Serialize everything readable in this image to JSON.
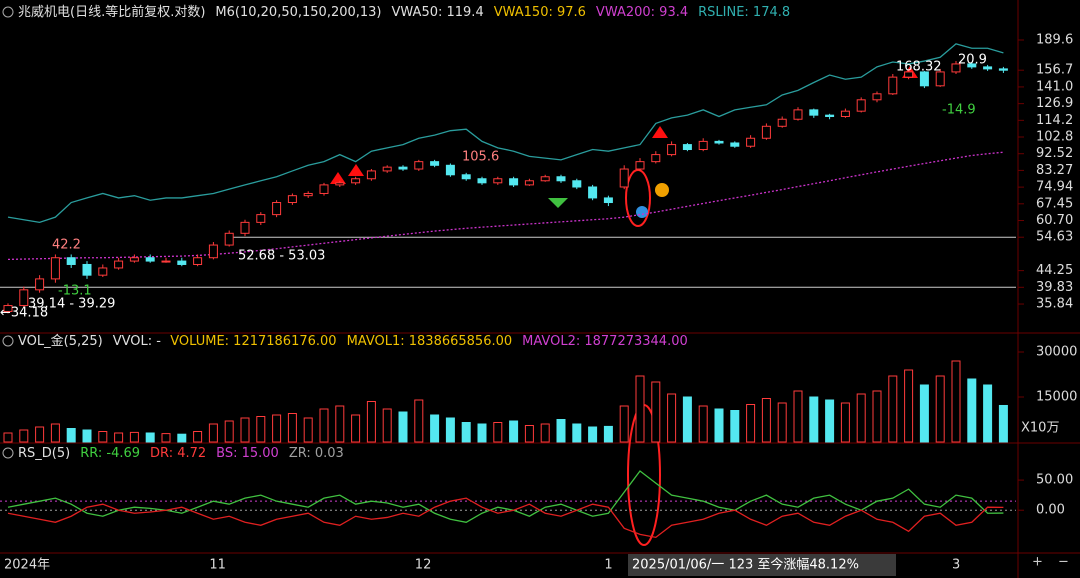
{
  "chart_data": [
    {
      "type": "candlestick",
      "title": "兆威机电(日线.等比前复权.对数)",
      "indicators": [
        {
          "text": "M6(10,20,50,150,200,13)",
          "color": "#e0e0e0"
        },
        {
          "text": "VWA50: 119.4",
          "color": "#e0e0e0"
        },
        {
          "text": "VWA150: 97.6",
          "color": "#f0c000"
        },
        {
          "text": "VWA200: 93.4",
          "color": "#d040d0"
        },
        {
          "text": "RSLINE: 174.8",
          "color": "#30b0b0"
        }
      ],
      "categories": [
        "2024年",
        null,
        null,
        null,
        null,
        null,
        null,
        null,
        null,
        null,
        null,
        null,
        null,
        "11",
        null,
        null,
        null,
        null,
        null,
        null,
        null,
        null,
        null,
        null,
        null,
        null,
        "12",
        null,
        null,
        null,
        null,
        null,
        null,
        null,
        null,
        null,
        null,
        null,
        "1",
        null,
        null,
        null,
        null,
        null,
        null,
        null,
        null,
        null,
        null,
        null,
        null,
        null,
        null,
        null,
        null,
        null,
        null,
        null,
        null,
        null,
        "3",
        null,
        null,
        null
      ],
      "open": [
        34.2,
        35.5,
        39.2,
        42,
        48,
        46,
        43,
        45,
        47,
        48,
        47,
        47,
        46,
        48,
        52,
        56,
        60,
        63,
        68,
        71,
        72,
        76,
        77,
        79,
        83,
        85,
        84,
        88,
        86,
        81,
        79,
        77,
        79,
        76,
        78,
        80,
        78,
        75,
        70,
        75,
        84,
        88,
        92,
        98,
        95,
        100,
        99,
        97,
        102,
        110,
        115,
        122,
        118,
        117,
        121,
        130,
        135,
        150,
        155,
        142,
        155,
        163,
        160,
        158
      ],
      "high": [
        36,
        40,
        43,
        49,
        49,
        47,
        46,
        48,
        49,
        49,
        48,
        48,
        49,
        53,
        57,
        61,
        64,
        69,
        72,
        73,
        77,
        78,
        80,
        84,
        86,
        86,
        89,
        89,
        87,
        82,
        80,
        80,
        80,
        79,
        81,
        81,
        79,
        76,
        71,
        86,
        90,
        94,
        100,
        99,
        102,
        101,
        100,
        104,
        112,
        117,
        124,
        123,
        119,
        123,
        132,
        137,
        153,
        158,
        156,
        158,
        166,
        165,
        162,
        160
      ],
      "low": [
        33.8,
        35,
        38.5,
        41,
        45,
        42,
        42.5,
        44.5,
        46.5,
        46.5,
        46.5,
        45.5,
        45.5,
        47.5,
        51.5,
        55,
        59,
        62,
        67,
        70,
        71,
        75,
        76,
        78,
        82,
        83,
        83,
        85,
        80,
        78,
        76,
        76,
        75,
        75.5,
        77.5,
        77,
        74,
        69,
        66.5,
        74,
        83,
        87,
        91,
        94,
        94,
        98,
        96,
        96,
        101,
        109,
        114,
        116,
        115,
        116,
        120,
        128,
        134,
        148,
        140,
        141,
        153,
        158,
        156,
        154
      ],
      "close": [
        35.5,
        39.2,
        42,
        48,
        46,
        43,
        45,
        47,
        48,
        47,
        47,
        46,
        48,
        52,
        56,
        60,
        63,
        68,
        71,
        72,
        76,
        77,
        79,
        83,
        85,
        84,
        88,
        86,
        81,
        79,
        77,
        79,
        76,
        78,
        80,
        78,
        75,
        70,
        68,
        84,
        88,
        92,
        98,
        95,
        100,
        99,
        97,
        102,
        110,
        115,
        122,
        118,
        117,
        121,
        130,
        135,
        150,
        155,
        142,
        155,
        163,
        160,
        158,
        156.7
      ],
      "up_color": "#ff3b3b",
      "down_color": "#54e8f0",
      "series": [
        {
          "color": "#2a9d9d",
          "values": [
            62,
            61,
            60,
            62,
            68,
            70,
            72,
            70,
            71,
            69,
            70,
            70,
            71,
            72,
            74,
            76,
            78,
            80,
            83,
            86,
            88,
            92,
            88,
            94,
            96,
            98,
            102,
            104,
            107,
            108,
            100,
            96,
            94,
            91,
            90,
            89,
            92,
            95,
            94,
            96,
            98,
            112,
            116,
            118,
            122,
            117,
            122,
            124,
            126,
            134,
            138,
            145,
            152,
            148,
            150,
            160,
            165,
            163,
            166,
            170,
            185,
            180,
            180,
            174.8
          ]
        },
        {
          "color": "#cc33cc",
          "dashed": true,
          "values": [
            47.5,
            47.6,
            47.7,
            47.8,
            47.9,
            48,
            48,
            48.1,
            48.2,
            48.3,
            48.4,
            48.5,
            48.7,
            49,
            49.4,
            49.8,
            50.3,
            50.8,
            51.4,
            52,
            52.6,
            53.2,
            53.8,
            54.4,
            55,
            55.6,
            56.2,
            56.8,
            57.3,
            57.8,
            58.2,
            58.6,
            59,
            59.4,
            59.8,
            60.2,
            60.6,
            61,
            61.4,
            62,
            63,
            64,
            65.2,
            66.4,
            67.6,
            68.8,
            70,
            71.2,
            72.5,
            73.8,
            75.2,
            76.6,
            78,
            79.5,
            81,
            82.5,
            84,
            85.5,
            87,
            88.5,
            90,
            91.5,
            92.5,
            93.4
          ]
        }
      ],
      "hlines": [
        54.63,
        39.83
      ],
      "log_scale": true,
      "ylim": [
        31.4,
        208.4
      ],
      "yticks": [
        189.6,
        156.7,
        {
          "value": 141.0,
          "label": "141.0"
        },
        126.9,
        114.2,
        102.8,
        92.52,
        83.27,
        74.94,
        67.45,
        {
          "value": 60.7,
          "label": "60.70"
        },
        54.63,
        44.25,
        39.83,
        35.84
      ],
      "annotations": [
        {
          "text": "42.2",
          "color": "#ff8080"
        },
        {
          "text": "-13.1",
          "color": "#40d040"
        },
        {
          "text": "105.6",
          "color": "#ff8080"
        },
        {
          "text": "168.32",
          "color": "#ffffff"
        },
        {
          "text": "20.9",
          "color": "#ffffff"
        },
        {
          "text": "-14.9",
          "color": "#40d040"
        },
        {
          "text": "52.68 - 53.03",
          "color": "#ffffff"
        },
        {
          "text": "39.14 - 39.29",
          "color": "#ffffff"
        },
        {
          "text": "←34.18",
          "color": "#ffffff"
        }
      ]
    },
    {
      "type": "bar",
      "title": "VOL_金(5,25)",
      "indicators": [
        {
          "text": "VVOL: -",
          "color": "#e0e0e0"
        },
        {
          "text": "VOLUME: 1217186176.00",
          "color": "#f0c000"
        },
        {
          "text": "MAVOL1: 1838665856.00",
          "color": "#f0c000"
        },
        {
          "text": "MAVOL2: 1877273344.00",
          "color": "#d040d0"
        }
      ],
      "values": [
        3000,
        4000,
        5000,
        6000,
        4500,
        4000,
        3500,
        3000,
        3200,
        3000,
        2800,
        2600,
        3500,
        6000,
        7000,
        8000,
        8500,
        9000,
        9500,
        8000,
        11000,
        12000,
        9000,
        13500,
        11000,
        10000,
        14000,
        9000,
        8000,
        6500,
        6000,
        6500,
        7000,
        5500,
        6000,
        7500,
        6000,
        5000,
        5200,
        12000,
        22000,
        20000,
        16000,
        15000,
        12000,
        11000,
        10500,
        12500,
        14500,
        13000,
        17000,
        15000,
        14000,
        13000,
        16000,
        17000,
        22000,
        24000,
        19000,
        22000,
        27000,
        21000,
        19000,
        12172
      ],
      "ylim": [
        0,
        34000
      ],
      "yticks": [
        30000,
        15000
      ],
      "unit": "X10万"
    },
    {
      "type": "line",
      "title": "RS_D(5)",
      "indicators": [
        {
          "text": "RR: -4.69",
          "color": "#40d040"
        },
        {
          "text": "DR: 4.72",
          "color": "#ff3b3b"
        },
        {
          "text": "BS: 15.00",
          "color": "#d040d0"
        },
        {
          "text": "ZR: 0.03",
          "color": "#a0a0a0"
        }
      ],
      "series": [
        {
          "color": "#40c040",
          "values": [
            5,
            10,
            15,
            20,
            10,
            -5,
            -10,
            0,
            5,
            3,
            0,
            -5,
            5,
            15,
            10,
            20,
            25,
            15,
            10,
            5,
            20,
            25,
            10,
            15,
            12,
            5,
            10,
            -5,
            -15,
            -20,
            -5,
            5,
            0,
            -10,
            5,
            10,
            0,
            -10,
            -5,
            30,
            65,
            45,
            25,
            20,
            15,
            5,
            0,
            15,
            25,
            10,
            5,
            20,
            25,
            10,
            0,
            15,
            20,
            35,
            10,
            5,
            25,
            20,
            -5,
            -4.69
          ]
        },
        {
          "color": "#e02020",
          "values": [
            -5,
            -10,
            -15,
            -20,
            -10,
            5,
            10,
            0,
            -5,
            -3,
            0,
            5,
            -5,
            -15,
            -10,
            -20,
            -25,
            -15,
            -10,
            -5,
            -20,
            -25,
            -10,
            -15,
            -12,
            -5,
            -10,
            5,
            15,
            20,
            5,
            -5,
            0,
            10,
            -5,
            -10,
            0,
            10,
            5,
            -30,
            -40,
            -45,
            -25,
            -20,
            -15,
            -5,
            0,
            -15,
            -25,
            -10,
            -5,
            -20,
            -25,
            -10,
            0,
            -15,
            -20,
            -35,
            -10,
            -5,
            -25,
            -20,
            5,
            4.72
          ]
        }
      ],
      "reference_lines": [
        {
          "value": 15,
          "color": "#d040d0"
        },
        {
          "value": 0.03,
          "color": "#a0a0a0"
        }
      ],
      "ylim": [
        -66,
        80
      ],
      "yticks": [
        {
          "value": 50,
          "label": "50.00"
        },
        {
          "value": 0,
          "label": "0.00"
        }
      ]
    }
  ],
  "cursor_label": "2025/01/06/一 123 至今涨幅48.12%",
  "buttons": [
    "+",
    "−"
  ]
}
